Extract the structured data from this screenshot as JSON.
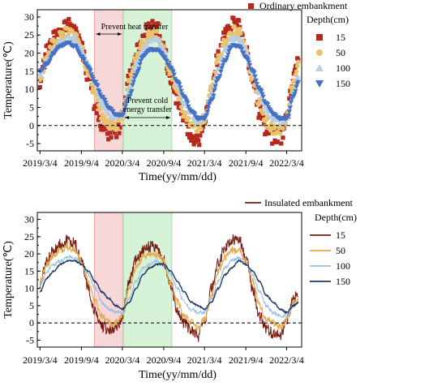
{
  "chart_data": [
    {
      "type": "scatter",
      "panel": "top",
      "title": "",
      "xlabel": "Time(yy/mm/dd)",
      "ylabel": "Temperature(℃)",
      "x_ticks": [
        "2019/3/4",
        "2019/9/4",
        "2020/3/4",
        "2020/9/4",
        "2021/3/4",
        "2021/9/4",
        "2022/3/4"
      ],
      "x_tick_dates": [
        "2019-03-04",
        "2019-09-04",
        "2020-03-04",
        "2020-09-04",
        "2021-03-04",
        "2021-09-04",
        "2022-03-04"
      ],
      "xlim": [
        "2019-02-20",
        "2022-05-10"
      ],
      "ylim": [
        -7,
        32
      ],
      "y_ticks": [
        "30",
        "25",
        "20",
        "15",
        "10",
        "5",
        "0",
        "-5"
      ],
      "legend_title": "Ordinary embankment",
      "depth_title": "Depth(cm)",
      "zero_line": 0,
      "shaded_regions": [
        {
          "start": "2019-11-01",
          "end": "2020-03-08",
          "color": "#f6c9cc",
          "label": "Prevent heat transfer"
        },
        {
          "start": "2020-03-08",
          "end": "2020-10-10",
          "color": "#c9efc9",
          "label": "Prevent cold energy transfer"
        }
      ],
      "series": [
        {
          "name": "15",
          "color": "#b5281d",
          "marker": "square",
          "x": [
            "2019-03-04",
            "2019-04-04",
            "2019-05-04",
            "2019-06-04",
            "2019-07-04",
            "2019-08-04",
            "2019-09-04",
            "2019-10-04",
            "2019-11-04",
            "2019-12-04",
            "2020-01-04",
            "2020-02-04",
            "2020-03-04",
            "2020-04-04",
            "2020-05-04",
            "2020-06-04",
            "2020-07-04",
            "2020-08-04",
            "2020-09-04",
            "2020-10-04",
            "2020-11-04",
            "2020-12-04",
            "2021-01-04",
            "2021-02-04",
            "2021-03-04",
            "2021-04-04",
            "2021-05-04",
            "2021-06-04",
            "2021-07-04",
            "2021-08-04",
            "2021-09-04",
            "2021-10-04",
            "2021-11-04",
            "2021-12-04",
            "2022-01-04",
            "2022-02-04",
            "2022-03-04",
            "2022-04-04",
            "2022-04-25"
          ],
          "y": [
            12,
            20,
            24,
            27,
            28,
            27,
            21,
            14,
            6,
            0,
            -2,
            -2,
            2,
            13,
            21,
            25,
            27,
            27,
            21,
            14,
            7,
            1,
            -3,
            -4,
            2,
            10,
            19,
            25,
            28,
            28,
            21,
            12,
            4,
            -1,
            -3,
            -3,
            1,
            14,
            20
          ]
        },
        {
          "name": "50",
          "color": "#e8c36c",
          "marker": "circle",
          "x": [
            "2019-03-04",
            "2019-04-04",
            "2019-05-04",
            "2019-06-04",
            "2019-07-04",
            "2019-08-04",
            "2019-09-04",
            "2019-10-04",
            "2019-11-04",
            "2019-12-04",
            "2020-01-04",
            "2020-02-04",
            "2020-03-04",
            "2020-04-04",
            "2020-05-04",
            "2020-06-04",
            "2020-07-04",
            "2020-08-04",
            "2020-09-04",
            "2020-10-04",
            "2020-11-04",
            "2020-12-04",
            "2021-01-04",
            "2021-02-04",
            "2021-03-04",
            "2021-04-04",
            "2021-05-04",
            "2021-06-04",
            "2021-07-04",
            "2021-08-04",
            "2021-09-04",
            "2021-10-04",
            "2021-11-04",
            "2021-12-04",
            "2022-01-04",
            "2022-02-04",
            "2022-03-04",
            "2022-04-04",
            "2022-04-25"
          ],
          "y": [
            13,
            19,
            23,
            25,
            26,
            25,
            21,
            15,
            8,
            3,
            0,
            0,
            3,
            12,
            19,
            23,
            25,
            25,
            21,
            15,
            9,
            3,
            0,
            -1,
            2,
            10,
            18,
            23,
            26,
            26,
            21,
            13,
            6,
            1,
            -1,
            -1,
            2,
            12,
            18
          ]
        },
        {
          "name": "100",
          "color": "#b9cde6",
          "marker": "triangle",
          "x": [
            "2019-03-04",
            "2019-04-04",
            "2019-05-04",
            "2019-06-04",
            "2019-07-04",
            "2019-08-04",
            "2019-09-04",
            "2019-10-04",
            "2019-11-04",
            "2019-12-04",
            "2020-01-04",
            "2020-02-04",
            "2020-03-04",
            "2020-04-04",
            "2020-05-04",
            "2020-06-04",
            "2020-07-04",
            "2020-08-04",
            "2020-09-04",
            "2020-10-04",
            "2020-11-04",
            "2020-12-04",
            "2021-01-04",
            "2021-02-04",
            "2021-03-04",
            "2021-04-04",
            "2021-05-04",
            "2021-06-04",
            "2021-07-04",
            "2021-08-04",
            "2021-09-04",
            "2021-10-04",
            "2021-11-04",
            "2021-12-04",
            "2022-01-04",
            "2022-02-04",
            "2022-03-04",
            "2022-04-04",
            "2022-04-25"
          ],
          "y": [
            14,
            18,
            21,
            23,
            24,
            24,
            21,
            17,
            11,
            6,
            3,
            2,
            3,
            10,
            17,
            21,
            23,
            24,
            21,
            17,
            11,
            6,
            3,
            1,
            2,
            9,
            16,
            21,
            24,
            24,
            21,
            15,
            9,
            4,
            2,
            1,
            2,
            9,
            14
          ]
        },
        {
          "name": "150",
          "color": "#4472c4",
          "marker": "triangle-down",
          "x": [
            "2019-03-04",
            "2019-04-04",
            "2019-05-04",
            "2019-06-04",
            "2019-07-04",
            "2019-08-04",
            "2019-09-04",
            "2019-10-04",
            "2019-11-04",
            "2019-12-04",
            "2020-01-04",
            "2020-02-04",
            "2020-03-04",
            "2020-04-04",
            "2020-05-04",
            "2020-06-04",
            "2020-07-04",
            "2020-08-04",
            "2020-09-04",
            "2020-10-04",
            "2020-11-04",
            "2020-12-04",
            "2021-01-04",
            "2021-02-04",
            "2021-03-04",
            "2021-04-04",
            "2021-05-04",
            "2021-06-04",
            "2021-07-04",
            "2021-08-04",
            "2021-09-04",
            "2021-10-04",
            "2021-11-04",
            "2021-12-04",
            "2022-01-04",
            "2022-02-04",
            "2022-03-04",
            "2022-04-04",
            "2022-04-25"
          ],
          "y": [
            15,
            17,
            20,
            22,
            23,
            22,
            19,
            16,
            12,
            8,
            5,
            3,
            3,
            8,
            14,
            19,
            21,
            21,
            19,
            16,
            12,
            8,
            4,
            2,
            2,
            7,
            13,
            18,
            22,
            22,
            19,
            15,
            10,
            6,
            3,
            2,
            2,
            8,
            12
          ]
        }
      ]
    },
    {
      "type": "line",
      "panel": "bottom",
      "title": "",
      "xlabel": "Time(yy/mm/dd)",
      "ylabel": "Temperature(℃)",
      "x_ticks": [
        "2019/3/4",
        "2019/9/4",
        "2020/3/4",
        "2020/9/4",
        "2021/3/4",
        "2021/9/4",
        "2022/3/4"
      ],
      "x_tick_dates": [
        "2019-03-04",
        "2019-09-04",
        "2020-03-04",
        "2020-09-04",
        "2021-03-04",
        "2021-09-04",
        "2022-03-04"
      ],
      "xlim": [
        "2019-02-20",
        "2022-05-10"
      ],
      "ylim": [
        -7,
        32
      ],
      "y_ticks": [
        "30",
        "25",
        "20",
        "15",
        "10",
        "5",
        "0",
        "-5"
      ],
      "legend_title": "Insulated embankment",
      "depth_title": "Depth(cm)",
      "zero_line": 0,
      "shaded_regions": [
        {
          "start": "2019-11-01",
          "end": "2020-03-08",
          "color": "#f6c9cc"
        },
        {
          "start": "2020-03-08",
          "end": "2020-10-10",
          "color": "#c9efc9"
        }
      ],
      "series": [
        {
          "name": "15",
          "color": "#7b1e12",
          "x": [
            "2019-03-04",
            "2019-04-04",
            "2019-05-04",
            "2019-06-04",
            "2019-07-04",
            "2019-08-04",
            "2019-09-04",
            "2019-10-04",
            "2019-11-04",
            "2019-12-04",
            "2020-01-04",
            "2020-02-04",
            "2020-03-04",
            "2020-04-04",
            "2020-05-04",
            "2020-06-04",
            "2020-07-04",
            "2020-08-04",
            "2020-09-04",
            "2020-10-04",
            "2020-11-04",
            "2020-12-04",
            "2021-01-04",
            "2021-02-04",
            "2021-03-04",
            "2021-04-04",
            "2021-05-04",
            "2021-06-04",
            "2021-07-04",
            "2021-08-04",
            "2021-09-04",
            "2021-10-04",
            "2021-11-04",
            "2021-12-04",
            "2022-01-04",
            "2022-02-04",
            "2022-03-04",
            "2022-04-04",
            "2022-04-25"
          ],
          "y": [
            11,
            18,
            21,
            23,
            24,
            23,
            18,
            10,
            3,
            -1,
            -2,
            -2,
            2,
            12,
            18,
            21,
            22,
            22,
            18,
            11,
            4,
            0,
            -2,
            -4,
            1,
            10,
            17,
            22,
            24,
            24,
            19,
            10,
            2,
            -2,
            -3,
            -4,
            1,
            7,
            8
          ]
        },
        {
          "name": "50",
          "color": "#e8a84a",
          "x": [
            "2019-03-04",
            "2019-04-04",
            "2019-05-04",
            "2019-06-04",
            "2019-07-04",
            "2019-08-04",
            "2019-09-04",
            "2019-10-04",
            "2019-11-04",
            "2019-12-04",
            "2020-01-04",
            "2020-02-04",
            "2020-03-04",
            "2020-04-04",
            "2020-05-04",
            "2020-06-04",
            "2020-07-04",
            "2020-08-04",
            "2020-09-04",
            "2020-10-04",
            "2020-11-04",
            "2020-12-04",
            "2021-01-04",
            "2021-02-04",
            "2021-03-04",
            "2021-04-04",
            "2021-05-04",
            "2021-06-04",
            "2021-07-04",
            "2021-08-04",
            "2021-09-04",
            "2021-10-04",
            "2021-11-04",
            "2021-12-04",
            "2022-01-04",
            "2022-02-04",
            "2022-03-04",
            "2022-04-04",
            "2022-04-25"
          ],
          "y": [
            12,
            17,
            20,
            21,
            22,
            21,
            18,
            12,
            6,
            2,
            0,
            0,
            2,
            10,
            16,
            19,
            20,
            20,
            18,
            12,
            6,
            2,
            0,
            -1,
            1,
            8,
            15,
            19,
            21,
            21,
            18,
            12,
            5,
            1,
            0,
            -1,
            1,
            6,
            7
          ]
        },
        {
          "name": "100",
          "color": "#9dc3e6",
          "x": [
            "2019-03-04",
            "2019-04-04",
            "2019-05-04",
            "2019-06-04",
            "2019-07-04",
            "2019-08-04",
            "2019-09-04",
            "2019-10-04",
            "2019-11-04",
            "2019-12-04",
            "2020-01-04",
            "2020-02-04",
            "2020-03-04",
            "2020-04-04",
            "2020-05-04",
            "2020-06-04",
            "2020-07-04",
            "2020-08-04",
            "2020-09-04",
            "2020-10-04",
            "2020-11-04",
            "2020-12-04",
            "2021-01-04",
            "2021-02-04",
            "2021-03-04",
            "2021-04-04",
            "2021-05-04",
            "2021-06-04",
            "2021-07-04",
            "2021-08-04",
            "2021-09-04",
            "2021-10-04",
            "2021-11-04",
            "2021-12-04",
            "2022-01-04",
            "2022-02-04",
            "2022-03-04",
            "2022-04-04",
            "2022-04-25"
          ],
          "y": [
            11,
            15,
            17,
            18,
            19,
            19,
            17,
            14,
            10,
            6,
            4,
            3,
            3,
            7,
            12,
            16,
            17,
            18,
            17,
            14,
            10,
            6,
            4,
            3,
            3,
            7,
            12,
            16,
            18,
            19,
            17,
            14,
            9,
            5,
            3,
            2,
            2,
            5,
            6
          ]
        },
        {
          "name": "150",
          "color": "#1f3864",
          "x": [
            "2019-03-04",
            "2019-04-04",
            "2019-05-04",
            "2019-06-04",
            "2019-07-04",
            "2019-08-04",
            "2019-09-04",
            "2019-10-04",
            "2019-11-04",
            "2019-12-04",
            "2020-01-04",
            "2020-02-04",
            "2020-03-04",
            "2020-04-04",
            "2020-05-04",
            "2020-06-04",
            "2020-07-04",
            "2020-08-04",
            "2020-09-04",
            "2020-10-04",
            "2020-11-04",
            "2020-12-04",
            "2021-01-04",
            "2021-02-04",
            "2021-03-04",
            "2021-04-04",
            "2021-05-04",
            "2021-06-04",
            "2021-07-04",
            "2021-08-04",
            "2021-09-04",
            "2021-10-04",
            "2021-11-04",
            "2021-12-04",
            "2022-01-04",
            "2022-02-04",
            "2022-03-04",
            "2022-04-04",
            "2022-04-25"
          ],
          "y": [
            9,
            13,
            15,
            17,
            18,
            18,
            17,
            15,
            12,
            9,
            7,
            5,
            4,
            6,
            10,
            14,
            16,
            17,
            17,
            15,
            12,
            9,
            6,
            5,
            4,
            6,
            10,
            14,
            16,
            18,
            17,
            15,
            12,
            8,
            6,
            4,
            3,
            5,
            6
          ]
        }
      ]
    }
  ]
}
